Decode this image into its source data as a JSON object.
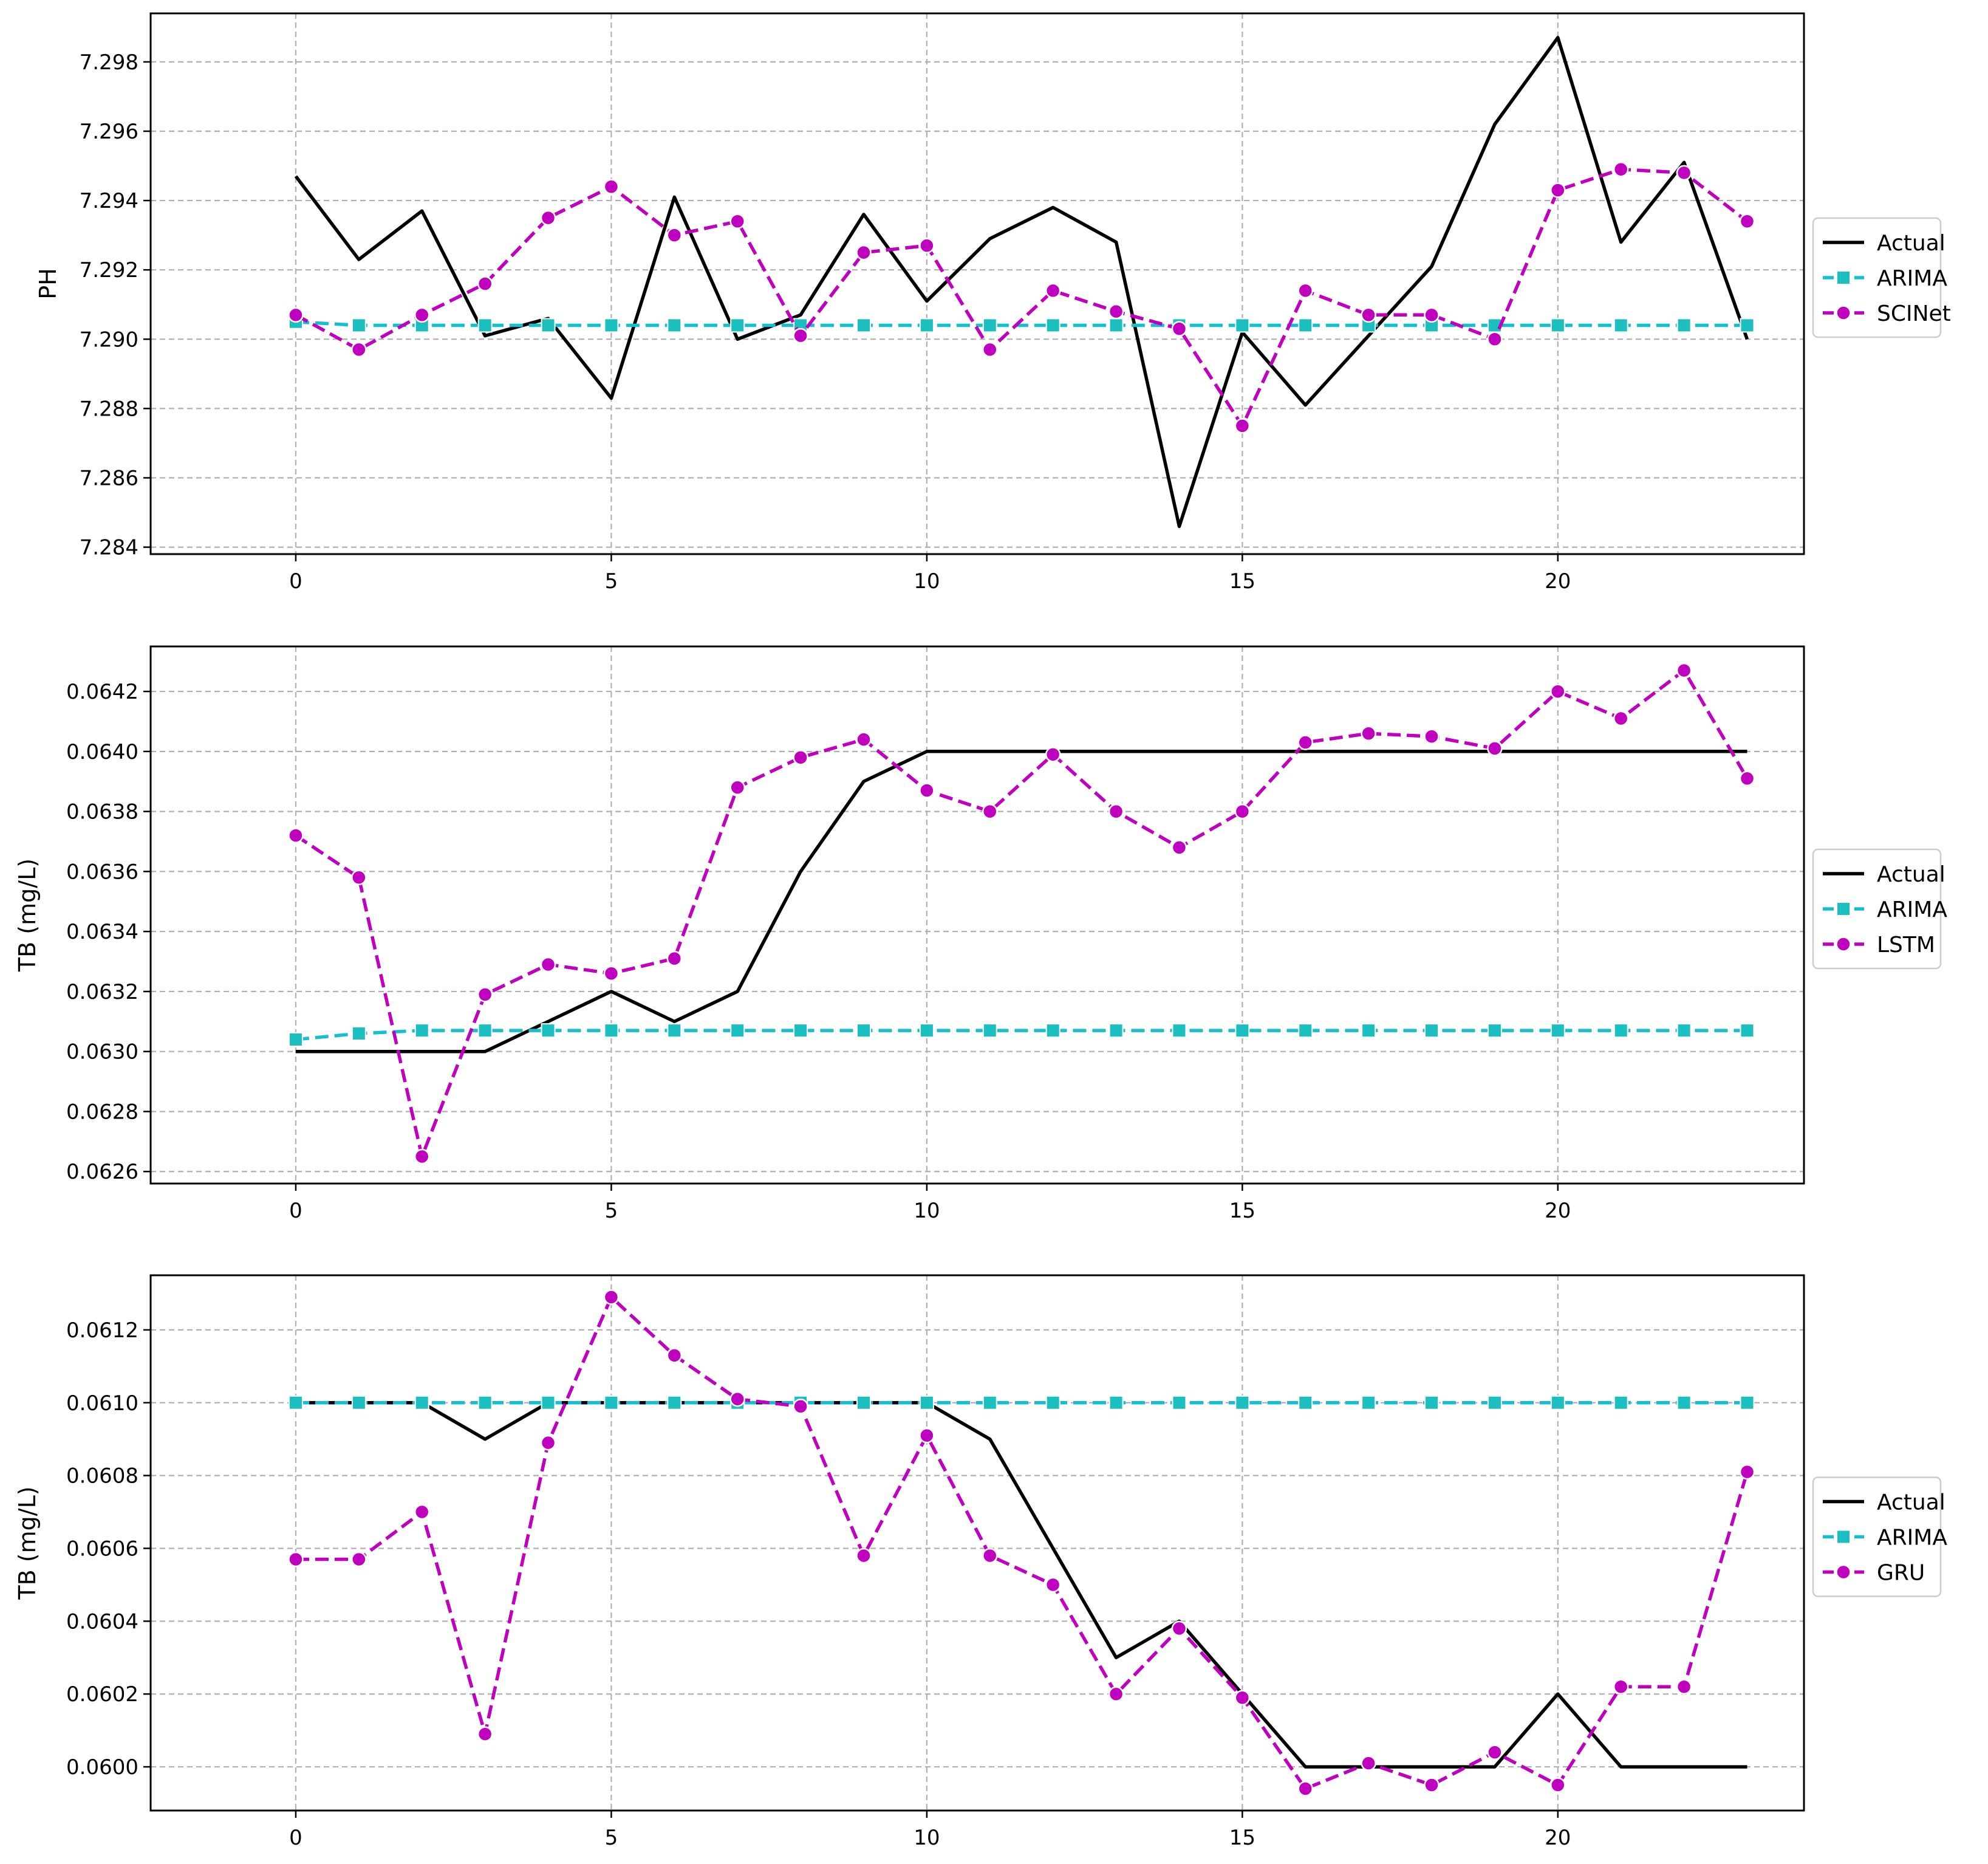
{
  "colors": {
    "actual": "#000000",
    "arima": "#17becf",
    "arima_marker": "#1bbfbf",
    "model": "#bf00bf",
    "grid": "#b0b0b0"
  },
  "chart_data": [
    {
      "type": "line",
      "ylabel": "PH",
      "xlabel": "",
      "x": [
        0,
        1,
        2,
        3,
        4,
        5,
        6,
        7,
        8,
        9,
        10,
        11,
        12,
        13,
        14,
        15,
        16,
        17,
        18,
        19,
        20,
        21,
        22,
        23
      ],
      "xlim": [
        -2.3,
        23.9
      ],
      "ylim": [
        7.2838,
        7.2994
      ],
      "xticks": [
        0,
        5,
        10,
        15,
        20
      ],
      "yticks": [
        7.284,
        7.286,
        7.288,
        7.29,
        7.292,
        7.294,
        7.296,
        7.298
      ],
      "ytick_labels": [
        "7.284",
        "7.286",
        "7.288",
        "7.290",
        "7.292",
        "7.294",
        "7.296",
        "7.298"
      ],
      "legend_position": "center-right-outside",
      "series": [
        {
          "name": "Actual",
          "style": "solid",
          "marker": "none",
          "values": [
            7.2947,
            7.2923,
            7.2937,
            7.2901,
            7.2906,
            7.2883,
            7.2941,
            7.29,
            7.2907,
            7.2936,
            7.2911,
            7.2929,
            7.2938,
            7.2928,
            7.2846,
            7.2902,
            7.2881,
            7.2901,
            7.2921,
            7.2962,
            7.2987,
            7.2928,
            7.2951,
            7.29
          ]
        },
        {
          "name": "ARIMA",
          "style": "dashdot",
          "marker": "square",
          "values": [
            7.2905,
            7.2904,
            7.2904,
            7.2904,
            7.2904,
            7.2904,
            7.2904,
            7.2904,
            7.2904,
            7.2904,
            7.2904,
            7.2904,
            7.2904,
            7.2904,
            7.2904,
            7.2904,
            7.2904,
            7.2904,
            7.2904,
            7.2904,
            7.2904,
            7.2904,
            7.2904,
            7.2904
          ]
        },
        {
          "name": "SCINet",
          "style": "dashed",
          "marker": "circle",
          "values": [
            7.2907,
            7.2897,
            7.2907,
            7.2916,
            7.2935,
            7.2944,
            7.293,
            7.2934,
            7.2901,
            7.2925,
            7.2927,
            7.2897,
            7.2914,
            7.2908,
            7.2903,
            7.2875,
            7.2914,
            7.2907,
            7.2907,
            7.29,
            7.2943,
            7.2949,
            7.2948,
            7.2934
          ]
        }
      ]
    },
    {
      "type": "line",
      "ylabel": "TB (mg/L)",
      "xlabel": "",
      "x": [
        0,
        1,
        2,
        3,
        4,
        5,
        6,
        7,
        8,
        9,
        10,
        11,
        12,
        13,
        14,
        15,
        16,
        17,
        18,
        19,
        20,
        21,
        22,
        23
      ],
      "xlim": [
        -2.3,
        23.9
      ],
      "ylim": [
        0.06256,
        0.06435
      ],
      "xticks": [
        0,
        5,
        10,
        15,
        20
      ],
      "yticks": [
        0.0626,
        0.0628,
        0.063,
        0.0632,
        0.0634,
        0.0636,
        0.0638,
        0.064,
        0.0642
      ],
      "ytick_labels": [
        "0.0626",
        "0.0628",
        "0.0630",
        "0.0632",
        "0.0634",
        "0.0636",
        "0.0638",
        "0.0640",
        "0.0642"
      ],
      "legend_position": "center-right-outside",
      "series": [
        {
          "name": "Actual",
          "style": "solid",
          "marker": "none",
          "values": [
            0.063,
            0.063,
            0.063,
            0.063,
            0.0631,
            0.0632,
            0.0631,
            0.0632,
            0.0636,
            0.0639,
            0.064,
            0.064,
            0.064,
            0.064,
            0.064,
            0.064,
            0.064,
            0.064,
            0.064,
            0.064,
            0.064,
            0.064,
            0.064,
            0.064
          ]
        },
        {
          "name": "ARIMA",
          "style": "dashdot",
          "marker": "square",
          "values": [
            0.06304,
            0.06306,
            0.06307,
            0.06307,
            0.06307,
            0.06307,
            0.06307,
            0.06307,
            0.06307,
            0.06307,
            0.06307,
            0.06307,
            0.06307,
            0.06307,
            0.06307,
            0.06307,
            0.06307,
            0.06307,
            0.06307,
            0.06307,
            0.06307,
            0.06307,
            0.06307,
            0.06307
          ]
        },
        {
          "name": "LSTM",
          "style": "dashed",
          "marker": "circle",
          "values": [
            0.06372,
            0.06358,
            0.06265,
            0.06319,
            0.06329,
            0.06326,
            0.06331,
            0.06388,
            0.06398,
            0.06404,
            0.06387,
            0.0638,
            0.06399,
            0.0638,
            0.06368,
            0.0638,
            0.06403,
            0.06406,
            0.06405,
            0.06401,
            0.0642,
            0.06411,
            0.06427,
            0.06391
          ]
        }
      ]
    },
    {
      "type": "line",
      "ylabel": "TB (mg/L)",
      "xlabel": "",
      "x": [
        0,
        1,
        2,
        3,
        4,
        5,
        6,
        7,
        8,
        9,
        10,
        11,
        12,
        13,
        14,
        15,
        16,
        17,
        18,
        19,
        20,
        21,
        22,
        23
      ],
      "xlim": [
        -2.3,
        23.9
      ],
      "ylim": [
        0.05988,
        0.06135
      ],
      "xticks": [
        0,
        5,
        10,
        15,
        20
      ],
      "yticks": [
        0.06,
        0.0602,
        0.0604,
        0.0606,
        0.0608,
        0.061,
        0.0612
      ],
      "ytick_labels": [
        "0.0600",
        "0.0602",
        "0.0604",
        "0.0606",
        "0.0608",
        "0.0610",
        "0.0612"
      ],
      "legend_position": "center-right-outside",
      "series": [
        {
          "name": "Actual",
          "style": "solid",
          "marker": "none",
          "values": [
            0.061,
            0.061,
            0.061,
            0.0609,
            0.061,
            0.061,
            0.061,
            0.061,
            0.061,
            0.061,
            0.061,
            0.0609,
            0.0606,
            0.0603,
            0.0604,
            0.0602,
            0.06,
            0.06,
            0.06,
            0.06,
            0.0602,
            0.06,
            0.06,
            0.06
          ]
        },
        {
          "name": "ARIMA",
          "style": "dashdot",
          "marker": "square",
          "values": [
            0.061,
            0.061,
            0.061,
            0.061,
            0.061,
            0.061,
            0.061,
            0.061,
            0.061,
            0.061,
            0.061,
            0.061,
            0.061,
            0.061,
            0.061,
            0.061,
            0.061,
            0.061,
            0.061,
            0.061,
            0.061,
            0.061,
            0.061,
            0.061
          ]
        },
        {
          "name": "GRU",
          "style": "dashed",
          "marker": "circle",
          "values": [
            0.06057,
            0.06057,
            0.0607,
            0.06009,
            0.06089,
            0.06129,
            0.06113,
            0.06101,
            0.06099,
            0.06058,
            0.06091,
            0.06058,
            0.0605,
            0.0602,
            0.06038,
            0.06019,
            0.05994,
            0.06001,
            0.05995,
            0.06004,
            0.05995,
            0.06022,
            0.06022,
            0.06081
          ]
        }
      ]
    }
  ]
}
